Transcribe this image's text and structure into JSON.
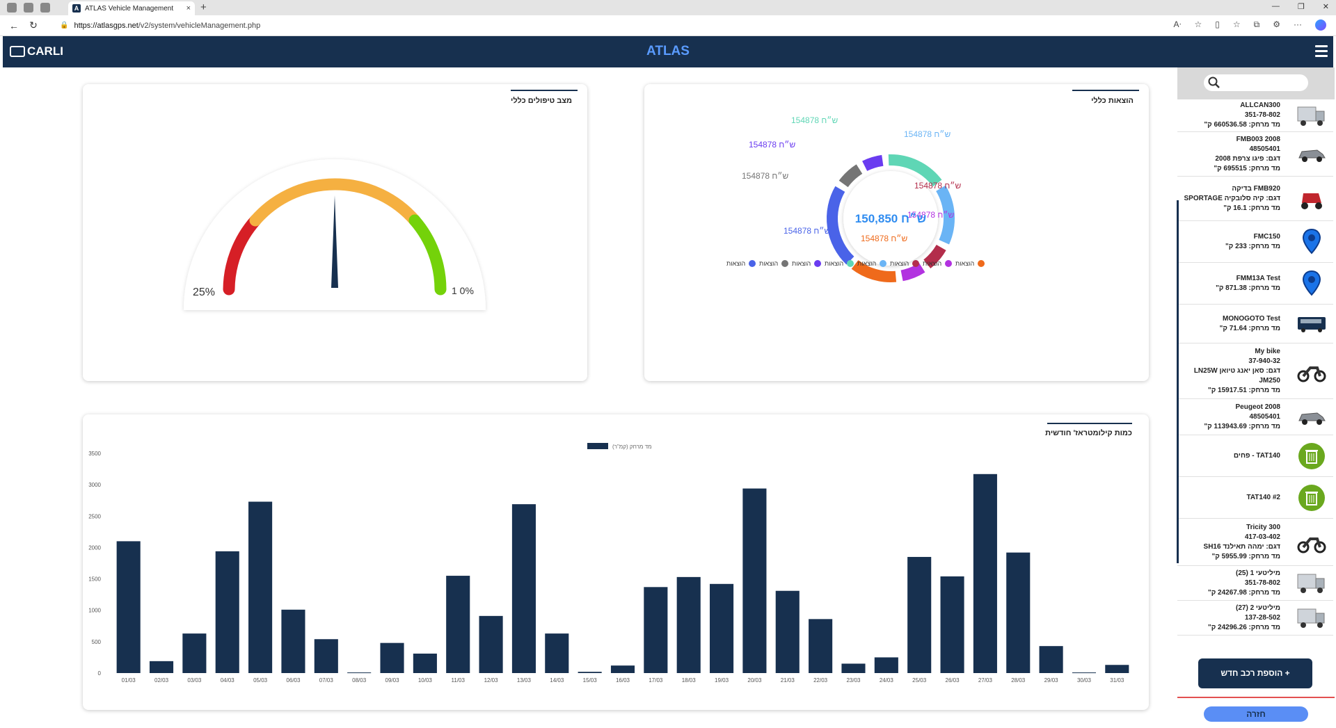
{
  "browser": {
    "tab_title": "ATLAS Vehicle Management",
    "tab_close": "×",
    "new_tab": "+",
    "url_host": "https://atlasgps.net",
    "url_path": "/v2/system/vehicleManagement.php"
  },
  "header": {
    "logo_text": "CARLI",
    "title": "ATLAS"
  },
  "gauge_card": {
    "title": "מצב טיפולים כללי",
    "left_label": "25%",
    "right_label": "1  0%",
    "value_fraction": 0.5
  },
  "expenses_card": {
    "title": "הוצאות כללי",
    "center_value": "150,850 ש״ח",
    "segments": [
      {
        "label": "154878 ש״ח",
        "color": "#5fd6b5",
        "value": 1
      },
      {
        "label": "154878 ש״ח",
        "color": "#6ab4f5",
        "value": 1
      },
      {
        "label": "154878 ש״ח",
        "color": "#b32d4b",
        "value": 0.45
      },
      {
        "label": "154878 ש״ח",
        "color": "#b232e0",
        "value": 0.45
      },
      {
        "label": "154878 ש״ח",
        "color": "#ef6a1b",
        "value": 0.8
      },
      {
        "label": "154878 ש״ח",
        "color": "#4a63e8",
        "value": 1.35
      },
      {
        "label": "154878 ש״ח",
        "color": "#757575",
        "value": 0.45
      },
      {
        "label": "154878 ש״ח",
        "color": "#6a3cf0",
        "value": 0.4
      }
    ],
    "legend": [
      {
        "label": "הוצאות",
        "color": "#4a63e8"
      },
      {
        "label": "הוצאות",
        "color": "#757575"
      },
      {
        "label": "הוצאות",
        "color": "#6a3cf0"
      },
      {
        "label": "הוצאות",
        "color": "#5fd6b5"
      },
      {
        "label": "הוצאות",
        "color": "#6ab4f5"
      },
      {
        "label": "הוצאות",
        "color": "#b32d4b"
      },
      {
        "label": "הוצאות",
        "color": "#b232e0"
      },
      {
        "label": "הוצאות",
        "color": "#ef6a1b"
      }
    ]
  },
  "chart_data": {
    "type": "bar",
    "title": "כמות קילומטראז' חודשית",
    "series": [
      {
        "name": "מד מרחק (קמ\"ר)",
        "color": "#17304f",
        "values": [
          2100,
          190,
          630,
          1940,
          2730,
          1010,
          540,
          10,
          480,
          310,
          1550,
          910,
          2690,
          630,
          20,
          120,
          1370,
          1530,
          1420,
          2940,
          1310,
          860,
          150,
          250,
          1850,
          1540,
          3170,
          1920,
          430,
          10,
          130
        ]
      }
    ],
    "categories": [
      "01/03",
      "02/03",
      "03/03",
      "04/03",
      "05/03",
      "06/03",
      "07/03",
      "08/03",
      "09/03",
      "10/03",
      "11/03",
      "12/03",
      "13/03",
      "14/03",
      "15/03",
      "16/03",
      "17/03",
      "18/03",
      "19/03",
      "20/03",
      "21/03",
      "22/03",
      "23/03",
      "24/03",
      "25/03",
      "26/03",
      "27/03",
      "28/03",
      "29/03",
      "30/03",
      "31/03"
    ],
    "ylim": [
      0,
      3500
    ],
    "yticks": [
      0,
      500,
      1000,
      1500,
      2000,
      2500,
      3000,
      3500
    ],
    "legend_position": "top-center",
    "grid": false
  },
  "sidebar": {
    "search_placeholder": "",
    "vehicles": [
      {
        "lines": [
          "ALLCAN300",
          "351-78-802",
          "מד מרחק: 660536.58 ק\""
        ],
        "icon": "truck-icon"
      },
      {
        "lines": [
          "FMB003 2008",
          "48505401",
          "דגם: פיגו צרפת 2008",
          "מד מרחק: 695515 ק\""
        ],
        "icon": "car-icon"
      },
      {
        "lines": [
          "FMB920 בדיקה",
          "דגם: קיה סלובקיה SPORTAGE",
          "מד מרחק: 16.1 ק\""
        ],
        "icon": "scooter-icon"
      },
      {
        "lines": [
          "FMC150",
          "מד מרחק: 233 ק\""
        ],
        "icon": "map-pin-icon"
      },
      {
        "lines": [
          "FMM13A Test",
          "מד מרחק: 871.38 ק\""
        ],
        "icon": "map-pin-icon"
      },
      {
        "lines": [
          "MONOGOTO Test",
          "מד מרחק: 71.64 ק\""
        ],
        "icon": "bus-icon"
      },
      {
        "lines": [
          "My bike",
          "37-940-32",
          "דגם: סאן יאנג טיואן LN25W",
          "JM250",
          "מד מרחק: 15917.51 ק\""
        ],
        "icon": "motorcycle-icon"
      },
      {
        "lines": [
          "Peugeot 2008",
          "48505401",
          "מד מרחק: 113943.69 ק\""
        ],
        "icon": "car-icon"
      },
      {
        "lines": [
          "TAT140 - פחים"
        ],
        "icon": "trash-bin-icon"
      },
      {
        "lines": [
          "TAT140 #2"
        ],
        "icon": "trash-bin-icon"
      },
      {
        "lines": [
          "Tricity 300",
          "417-03-402",
          "דגם: ימהה תאילנד SH16",
          "מד מרחק: 5955.99 ק\""
        ],
        "icon": "motorcycle-icon"
      },
      {
        "lines": [
          "מיליטעי 1 (25)",
          "351-78-802",
          "מד מרחק: 24267.98 ק\""
        ],
        "icon": "truck-icon"
      },
      {
        "lines": [
          "מיליטעי 2 (27)",
          "137-28-502",
          "מד מרחק: 24296.26 ק\""
        ],
        "icon": "truck-icon"
      }
    ],
    "add_button": "+ הוספת רכב חדש",
    "back_button": "חזרה"
  }
}
